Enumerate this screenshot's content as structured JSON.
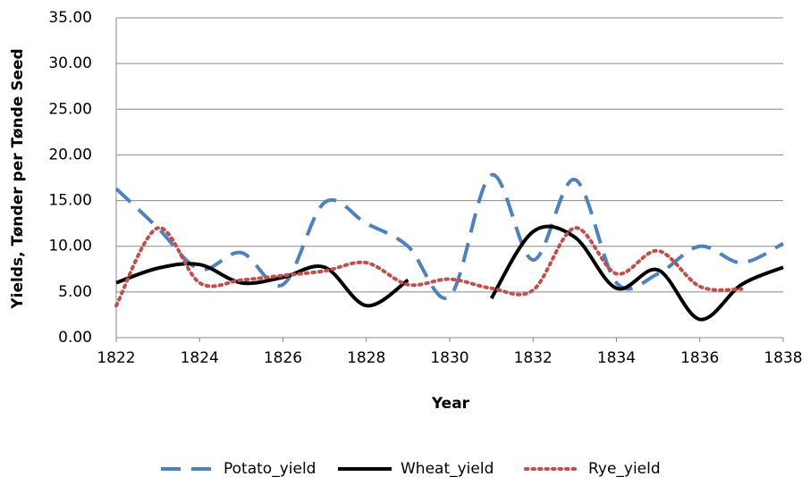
{
  "chart_data": {
    "type": "line",
    "x_label": "Year",
    "y_label": "Yields, Tønder per Tønde Seed",
    "x": [
      1822,
      1823,
      1824,
      1825,
      1826,
      1827,
      1828,
      1829,
      1830,
      1831,
      1832,
      1833,
      1834,
      1835,
      1836,
      1837,
      1838
    ],
    "series": [
      {
        "name": "Potato_yield",
        "color": "#4f81bd",
        "style": "dashed",
        "values": [
          16.3,
          12.0,
          7.5,
          9.3,
          5.8,
          14.8,
          12.5,
          10.0,
          4.5,
          17.8,
          8.5,
          17.3,
          6.0,
          7.0,
          10.0,
          8.2,
          10.3
        ]
      },
      {
        "name": "Wheat_yield",
        "color": "#000000",
        "style": "solid",
        "values": [
          6.0,
          7.6,
          8.0,
          6.0,
          6.6,
          7.7,
          3.5,
          6.3,
          null,
          4.3,
          11.6,
          11.0,
          5.4,
          7.4,
          2.0,
          5.8,
          7.7
        ]
      },
      {
        "name": "Rye_yield",
        "color": "#c0504d",
        "style": "dotted",
        "values": [
          3.5,
          12.0,
          6.0,
          6.3,
          6.8,
          7.3,
          8.2,
          5.8,
          6.4,
          5.4,
          5.2,
          12.0,
          7.0,
          9.5,
          5.6,
          5.3,
          null
        ]
      }
    ],
    "xlim": [
      1822,
      1838
    ],
    "xticks": [
      1822,
      1824,
      1826,
      1828,
      1830,
      1832,
      1834,
      1836,
      1838
    ],
    "ylim": [
      0,
      35
    ],
    "yticks": [
      {
        "value": 0,
        "label": "0.00"
      },
      {
        "value": 5,
        "label": "5.00"
      },
      {
        "value": 10,
        "label": "10.00"
      },
      {
        "value": 15,
        "label": "15.00"
      },
      {
        "value": 20,
        "label": "20.00"
      },
      {
        "value": 25,
        "label": "25.00"
      },
      {
        "value": 30,
        "label": "30.00"
      },
      {
        "value": 35,
        "label": "35.00"
      }
    ],
    "grid": true,
    "legend": "bottom"
  }
}
